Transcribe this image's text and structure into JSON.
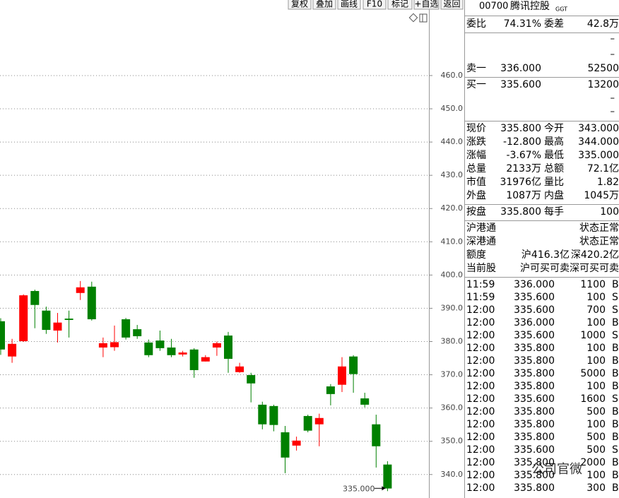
{
  "toolbar": [
    "复权",
    "叠加",
    "画线",
    "F10",
    "标记",
    "+自选",
    "返回"
  ],
  "chart_data": {
    "type": "candlestick",
    "open": [
      386.1,
      375.5,
      380.1,
      395.2,
      389.3,
      383.3,
      386.9,
      394.6,
      396.5,
      378.2,
      378.3,
      386.7,
      383.7,
      379.7,
      380.3,
      378.2,
      376.1,
      377.6,
      374.0,
      378.2,
      381.8,
      370.8,
      369.9,
      361.0,
      360.6,
      352.7,
      348.7,
      357.6,
      355.1,
      366.5,
      367.0,
      375.5,
      362.9,
      355.1,
      343
    ],
    "high": [
      387.0,
      380.8,
      394.2,
      395.6,
      390.5,
      388.6,
      389.3,
      398.2,
      398.0,
      381.2,
      384.8,
      387.1,
      385.0,
      380.6,
      383.3,
      380.8,
      377.2,
      378.0,
      375.9,
      380.0,
      382.9,
      373.6,
      370.6,
      361.9,
      361.0,
      354.6,
      351.4,
      358.0,
      358.3,
      367.2,
      375.3,
      375.9,
      364.6,
      358.0,
      344
    ],
    "low": [
      376.0,
      373.6,
      379.9,
      384.0,
      382.3,
      379.7,
      381.2,
      392.5,
      386.3,
      375.3,
      377.2,
      380.6,
      380.8,
      375.3,
      377.2,
      375.3,
      375.5,
      369.1,
      374.0,
      375.7,
      370.6,
      370.6,
      361.7,
      353.6,
      353.0,
      340.4,
      347.2,
      352.7,
      348.5,
      360.8,
      364.8,
      364.6,
      360.2,
      342.1,
      335
    ],
    "close": [
      377.6,
      379.3,
      393.9,
      391.0,
      383.5,
      385.7,
      386.5,
      396.3,
      386.7,
      379.5,
      379.8,
      381.2,
      381.6,
      375.9,
      378.0,
      375.9,
      376.7,
      371.4,
      375.3,
      379.5,
      374.8,
      372.5,
      367.4,
      355.1,
      354.9,
      345.1,
      350.2,
      353.2,
      357.0,
      364.2,
      372.5,
      370.2,
      361.0,
      348.5,
      335.8
    ],
    "up_color": "#ff0000",
    "down_color": "#008000",
    "ylim": [
      334,
      478.9
    ],
    "yticks": [
      {
        "value": 340,
        "label": "340.0"
      },
      {
        "value": 350,
        "label": "350.0"
      },
      {
        "value": 360,
        "label": "360.0"
      },
      {
        "value": 370,
        "label": "370.0"
      },
      {
        "value": 380,
        "label": "380.0"
      },
      {
        "value": 390,
        "label": "390.0"
      },
      {
        "value": 400,
        "label": "400.0"
      },
      {
        "value": 410,
        "label": "410.0"
      },
      {
        "value": 420,
        "label": "420.0"
      },
      {
        "value": 430,
        "label": "430.0"
      },
      {
        "value": 440,
        "label": "440.0"
      },
      {
        "value": 450,
        "label": "450.0"
      },
      {
        "value": 460,
        "label": "460.0"
      }
    ],
    "grid": true,
    "low_marker": {
      "value": 335,
      "label": "335.000"
    }
  },
  "quote": {
    "code": "00700",
    "name": "腾讯控股",
    "tag": "GGT",
    "weibi": [
      "委比",
      "74.31%",
      "委差",
      "42.8万"
    ],
    "ask_empty": [
      "–",
      "–"
    ],
    "ask1": [
      "卖一",
      "336.000",
      "52500"
    ],
    "bid1": [
      "买一",
      "335.600",
      "13200"
    ],
    "bid_empty": [
      "–",
      "–"
    ],
    "stats": [
      [
        "现价",
        "335.800",
        "今开",
        "343.000"
      ],
      [
        "涨跌",
        "-12.800",
        "最高",
        "344.000"
      ],
      [
        "涨幅",
        "-3.67%",
        "最低",
        "335.000"
      ],
      [
        "总量",
        "2133万",
        "总额",
        "72.1亿"
      ],
      [
        "市值",
        "31976亿",
        "量比",
        "1.82"
      ],
      [
        "外盘",
        "1087万",
        "内盘",
        "1045万"
      ]
    ],
    "lot": [
      "按盘",
      "335.800",
      "每手",
      "100"
    ],
    "connect": [
      [
        "沪港通",
        "状态正常"
      ],
      [
        "深港通",
        "状态正常"
      ],
      [
        "额度",
        "沪416.3亿",
        "深420.2亿"
      ],
      [
        "当前股",
        "沪可买可卖",
        "深可买可卖"
      ]
    ],
    "trades": [
      [
        "11:59",
        "336.000",
        "1100",
        "B"
      ],
      [
        "11:59",
        "335.600",
        "100",
        "S"
      ],
      [
        "12:00",
        "335.600",
        "700",
        "S"
      ],
      [
        "12:00",
        "336.000",
        "100",
        "B"
      ],
      [
        "12:00",
        "335.600",
        "1000",
        "S"
      ],
      [
        "12:00",
        "335.800",
        "100",
        "B"
      ],
      [
        "12:00",
        "335.800",
        "100",
        "B"
      ],
      [
        "12:00",
        "335.800",
        "5000",
        "B"
      ],
      [
        "12:00",
        "335.800",
        "100",
        "B"
      ],
      [
        "12:00",
        "335.600",
        "1600",
        "S"
      ],
      [
        "12:00",
        "335.800",
        "500",
        "B"
      ],
      [
        "12:00",
        "335.800",
        "100",
        "B"
      ],
      [
        "12:00",
        "335.800",
        "500",
        "B"
      ],
      [
        "12:00",
        "335.600",
        "500",
        "S"
      ],
      [
        "12:00",
        "335.800",
        "2000",
        "B"
      ],
      [
        "12:00",
        "335.800",
        "100",
        "B"
      ],
      [
        "12:00",
        "335.800",
        "300",
        "B"
      ]
    ]
  },
  "watermark": "公司官微"
}
